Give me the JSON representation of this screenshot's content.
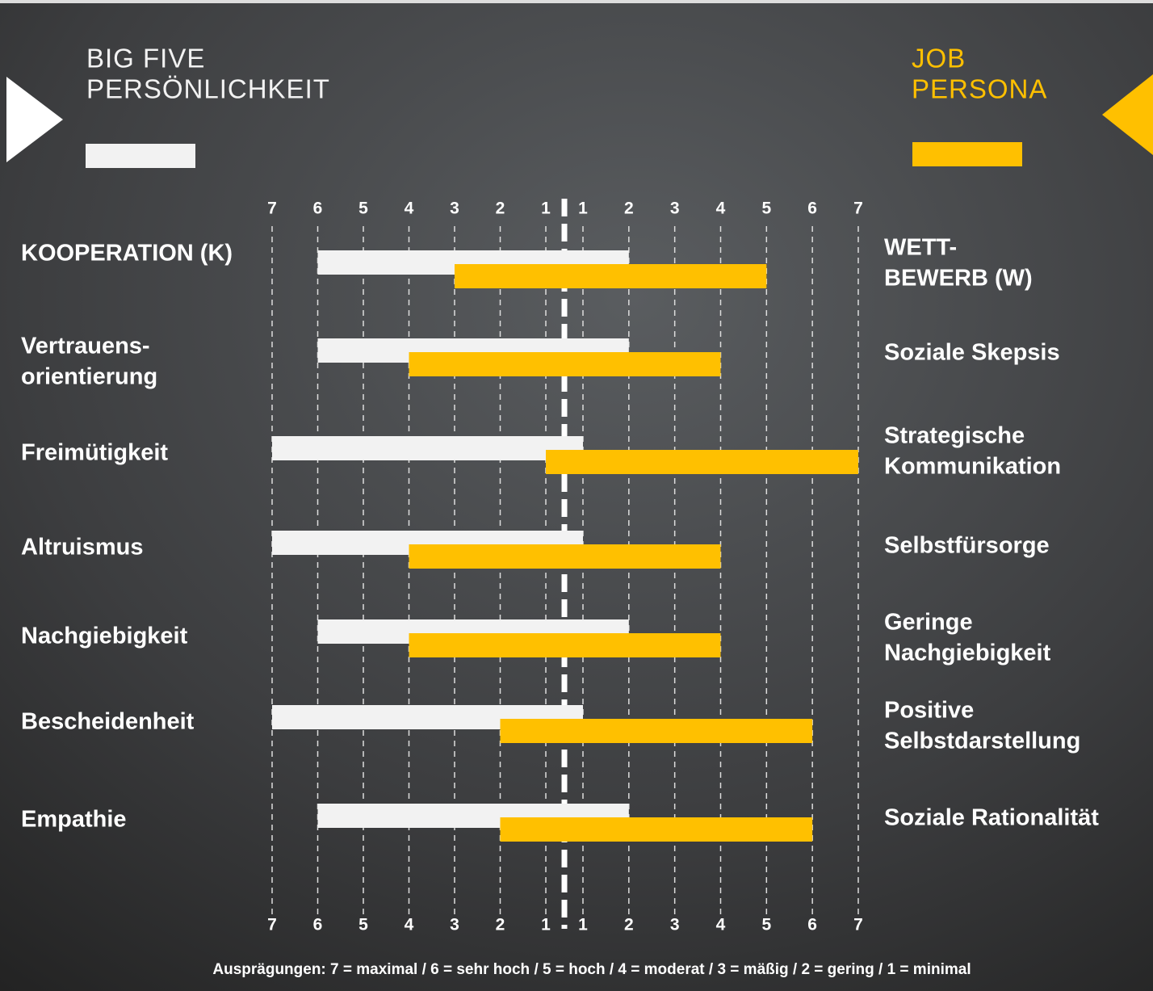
{
  "chart_data": {
    "type": "diverging-range",
    "left_ticks": [
      7,
      6,
      5,
      4,
      3,
      2,
      1
    ],
    "right_ticks": [
      1,
      2,
      3,
      4,
      5,
      6,
      7
    ],
    "left_labels": [
      [
        "KOOPERATION (K)"
      ],
      [
        "Vertrauens-",
        "orientierung"
      ],
      [
        "Freimütigkeit"
      ],
      [
        "Altruismus"
      ],
      [
        "Nachgiebigkeit"
      ],
      [
        "Bescheidenheit"
      ],
      [
        "Empathie"
      ]
    ],
    "right_labels": [
      [
        "WETT-",
        "BEWERB (W)"
      ],
      [
        "Soziale Skepsis"
      ],
      [
        "Strategische",
        "Kommunikation"
      ],
      [
        "Selbstfürsorge"
      ],
      [
        "Geringe",
        "Nachgiebigkeit"
      ],
      [
        "Positive",
        "Selbstdarstellung"
      ],
      [
        "Soziale Rationalität"
      ]
    ],
    "series": [
      {
        "name": [
          "BIG FIVE",
          "PERSÖNLICHKEIT"
        ],
        "color": "#f2f2f2",
        "left": [
          6,
          6,
          7,
          7,
          6,
          7,
          6
        ],
        "right": [
          2,
          2,
          1,
          1,
          2,
          1,
          2
        ]
      },
      {
        "name": [
          "JOB",
          "PERSONA"
        ],
        "color": "#ffc000",
        "left": [
          3,
          4,
          1,
          4,
          4,
          2,
          2
        ],
        "right": [
          5,
          4,
          7,
          4,
          4,
          6,
          6
        ]
      }
    ],
    "footnote": "Ausprägungen: 7 = maximal / 6 = sehr hoch / 5 = hoch / 4 = moderat / 3 = mäßig / 2 = gering / 1 = minimal",
    "grid": true
  }
}
